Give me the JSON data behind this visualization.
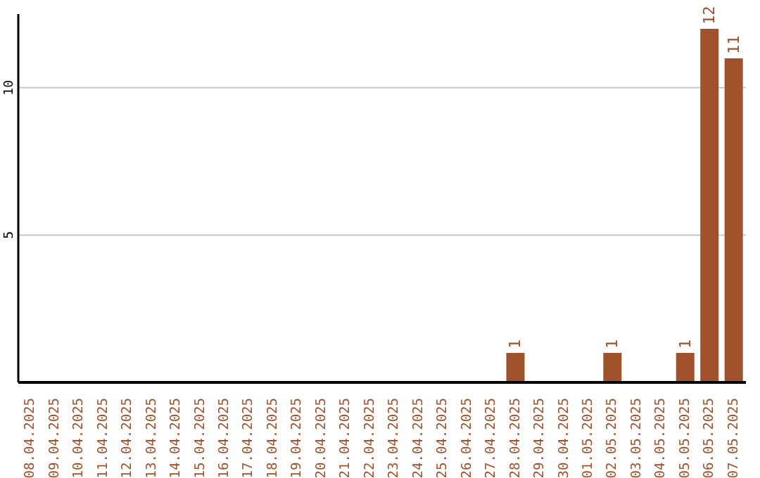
{
  "chart_data": {
    "type": "bar",
    "categories": [
      "08.04.2025",
      "09.04.2025",
      "10.04.2025",
      "11.04.2025",
      "12.04.2025",
      "13.04.2025",
      "14.04.2025",
      "15.04.2025",
      "16.04.2025",
      "17.04.2025",
      "18.04.2025",
      "19.04.2025",
      "20.04.2025",
      "21.04.2025",
      "22.04.2025",
      "23.04.2025",
      "24.04.2025",
      "25.04.2025",
      "26.04.2025",
      "27.04.2025",
      "28.04.2025",
      "29.04.2025",
      "30.04.2025",
      "01.05.2025",
      "02.05.2025",
      "03.05.2025",
      "04.05.2025",
      "05.05.2025",
      "06.05.2025",
      "07.05.2025"
    ],
    "values": [
      0,
      0,
      0,
      0,
      0,
      0,
      0,
      0,
      0,
      0,
      0,
      0,
      0,
      0,
      0,
      0,
      0,
      0,
      0,
      0,
      1,
      0,
      0,
      0,
      1,
      0,
      0,
      1,
      12,
      11
    ],
    "value_labels": [
      null,
      null,
      null,
      null,
      null,
      null,
      null,
      null,
      null,
      null,
      null,
      null,
      null,
      null,
      null,
      null,
      null,
      null,
      null,
      null,
      "1",
      null,
      null,
      null,
      "1",
      null,
      null,
      "1",
      "12",
      "11"
    ],
    "color": "#a0522d",
    "ylim": [
      0,
      12.5
    ],
    "yticks": [
      5,
      10
    ],
    "grid": "y"
  }
}
